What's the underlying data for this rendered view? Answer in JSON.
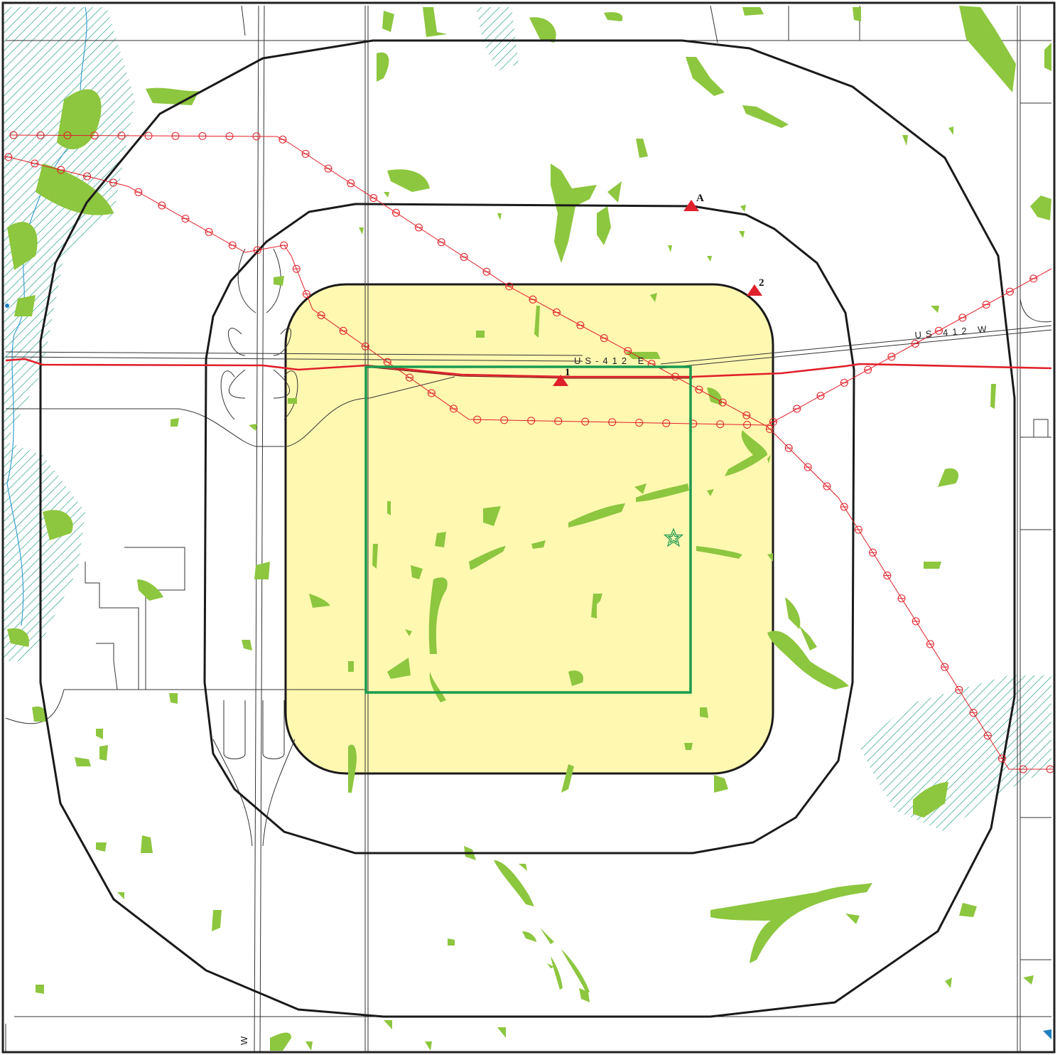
{
  "map": {
    "colors": {
      "background": "#ffffff",
      "frame": "#222222",
      "ring": "#1a1a1a",
      "road": "#333333",
      "highway": "#e0202a",
      "pipeline": "#e0202a",
      "vegetation": "#8dc63f",
      "wetland_hatch": "#2aa08a",
      "water": "#3aa0d0",
      "zone_fill": "#fff8b0",
      "site_boundary": "#1a9a50",
      "marker": "#e0202a"
    },
    "road_labels": {
      "us412_east": "US-412 E",
      "us412_west": "US 412 W",
      "south_w": "W"
    },
    "markers": [
      {
        "id": "A",
        "label": "A"
      },
      {
        "id": "2",
        "label": "2"
      },
      {
        "id": "1",
        "label": "1"
      }
    ],
    "site_symbol": "star-icon"
  }
}
